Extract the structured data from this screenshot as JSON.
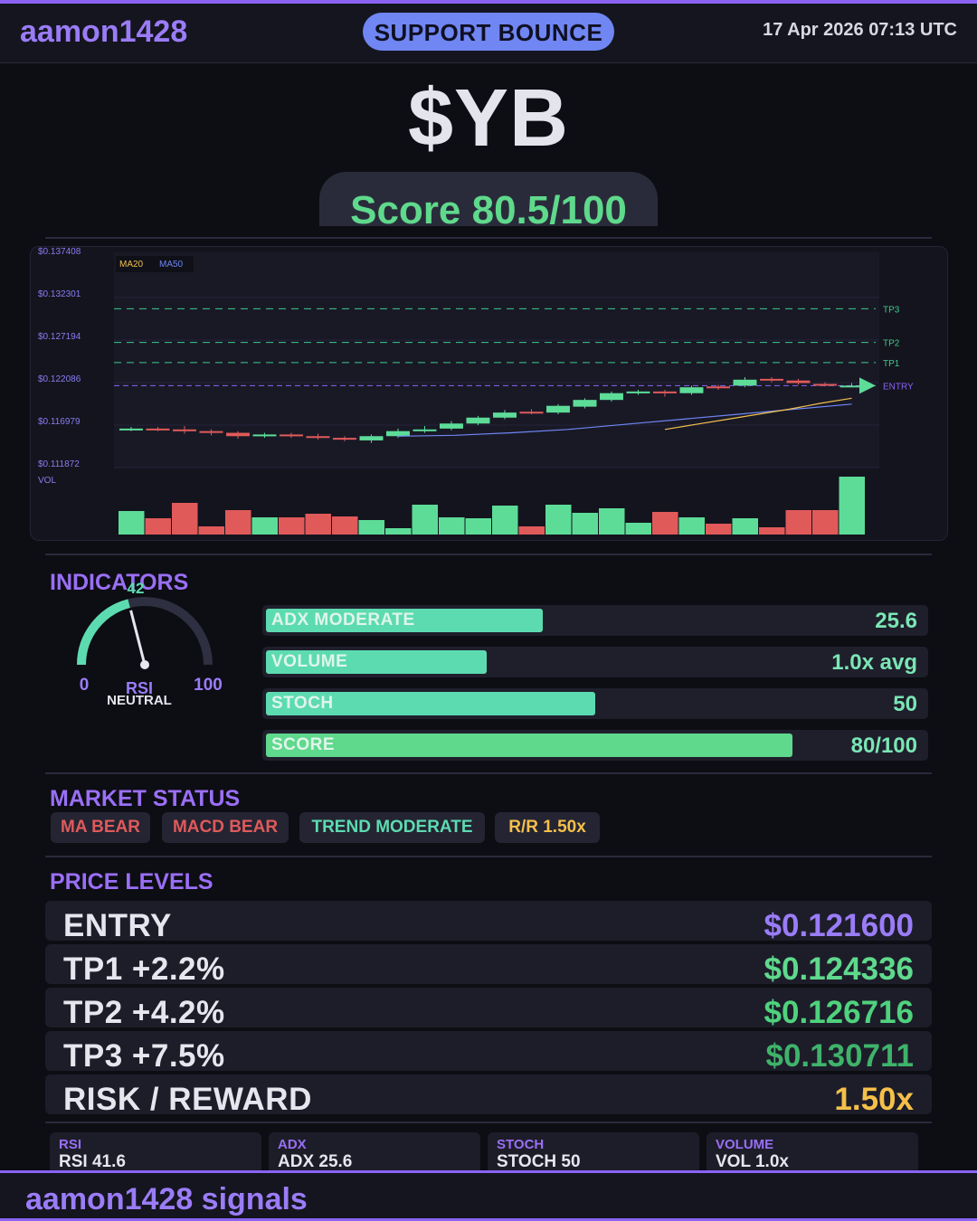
{
  "header": {
    "brand": "aamon1428",
    "signal": "SUPPORT BOUNCE",
    "datetime": "17 Apr 2026  07:13 UTC"
  },
  "ticker": "$YB",
  "score_label": "Score 80.5/100",
  "chart": {
    "y_labels": [
      "$0.137408",
      "$0.132301",
      "$0.127194",
      "$0.122086",
      "$0.116979",
      "$0.111872"
    ],
    "vol_label": "VOL",
    "legend": [
      "MA20",
      "MA50"
    ],
    "level_labels": [
      "TP3",
      "TP2",
      "TP1",
      "ENTRY"
    ],
    "colors": {
      "up": "#5ddc98",
      "down": "#e05a5a",
      "ma20": "#f2c14e",
      "ma50": "#6f86f3",
      "entry": "#8a63f5",
      "tp": "#3ec98a"
    }
  },
  "chart_data": {
    "type": "candlestick",
    "ylim": [
      0.111872,
      0.137408
    ],
    "levels": {
      "TP3": 0.130711,
      "TP2": 0.126716,
      "TP1": 0.124336,
      "ENTRY": 0.1216
    },
    "candles": [
      {
        "o": 0.1164,
        "c": 0.1165,
        "h": 0.1167,
        "l": 0.1162,
        "v": 26
      },
      {
        "o": 0.1165,
        "c": 0.1164,
        "h": 0.1167,
        "l": 0.1162,
        "v": 18
      },
      {
        "o": 0.1164,
        "c": 0.1162,
        "h": 0.1168,
        "l": 0.1159,
        "v": 35
      },
      {
        "o": 0.1162,
        "c": 0.116,
        "h": 0.1164,
        "l": 0.1157,
        "v": 9
      },
      {
        "o": 0.116,
        "c": 0.1156,
        "h": 0.1162,
        "l": 0.1153,
        "v": 27
      },
      {
        "o": 0.1156,
        "c": 0.1158,
        "h": 0.116,
        "l": 0.1154,
        "v": 19
      },
      {
        "o": 0.1158,
        "c": 0.1156,
        "h": 0.116,
        "l": 0.1154,
        "v": 19
      },
      {
        "o": 0.1156,
        "c": 0.1154,
        "h": 0.1159,
        "l": 0.1152,
        "v": 23
      },
      {
        "o": 0.1154,
        "c": 0.1152,
        "h": 0.1156,
        "l": 0.115,
        "v": 20
      },
      {
        "o": 0.1151,
        "c": 0.1156,
        "h": 0.1158,
        "l": 0.1148,
        "v": 16
      },
      {
        "o": 0.1156,
        "c": 0.1162,
        "h": 0.1165,
        "l": 0.1154,
        "v": 7
      },
      {
        "o": 0.1162,
        "c": 0.1164,
        "h": 0.1168,
        "l": 0.116,
        "v": 33
      },
      {
        "o": 0.1165,
        "c": 0.1171,
        "h": 0.1174,
        "l": 0.1163,
        "v": 19
      },
      {
        "o": 0.1171,
        "c": 0.1178,
        "h": 0.118,
        "l": 0.1169,
        "v": 18
      },
      {
        "o": 0.1178,
        "c": 0.1184,
        "h": 0.1187,
        "l": 0.1176,
        "v": 32
      },
      {
        "o": 0.1185,
        "c": 0.1184,
        "h": 0.1188,
        "l": 0.1182,
        "v": 9
      },
      {
        "o": 0.1184,
        "c": 0.1192,
        "h": 0.1194,
        "l": 0.1182,
        "v": 33
      },
      {
        "o": 0.1191,
        "c": 0.1199,
        "h": 0.1201,
        "l": 0.1189,
        "v": 24
      },
      {
        "o": 0.1199,
        "c": 0.1207,
        "h": 0.1209,
        "l": 0.1197,
        "v": 29
      },
      {
        "o": 0.1207,
        "c": 0.1209,
        "h": 0.1211,
        "l": 0.1205,
        "v": 13
      },
      {
        "o": 0.1209,
        "c": 0.1207,
        "h": 0.1211,
        "l": 0.1203,
        "v": 25
      },
      {
        "o": 0.1207,
        "c": 0.1214,
        "h": 0.1216,
        "l": 0.1205,
        "v": 19
      },
      {
        "o": 0.1215,
        "c": 0.1214,
        "h": 0.1217,
        "l": 0.1211,
        "v": 12
      },
      {
        "o": 0.1216,
        "c": 0.1223,
        "h": 0.1226,
        "l": 0.1214,
        "v": 18
      },
      {
        "o": 0.1224,
        "c": 0.1222,
        "h": 0.1226,
        "l": 0.122,
        "v": 8
      },
      {
        "o": 0.1222,
        "c": 0.1219,
        "h": 0.1224,
        "l": 0.1217,
        "v": 27
      },
      {
        "o": 0.1218,
        "c": 0.1217,
        "h": 0.122,
        "l": 0.1215,
        "v": 27
      },
      {
        "o": 0.1216,
        "c": 0.1216,
        "h": 0.1219,
        "l": 0.1214,
        "v": 64
      }
    ],
    "ma20": [
      0.1164,
      0.117,
      0.1176,
      0.1182,
      0.1188,
      0.1195,
      0.1201
    ],
    "ma50": [
      0.1156,
      0.1157,
      0.116,
      0.1164,
      0.117,
      0.1176,
      0.1182,
      0.1188,
      0.1194
    ],
    "vol_max": 64
  },
  "indicators": {
    "title": "INDICATORS",
    "rsi": {
      "value": 42,
      "min_label": "0",
      "max_label": "100",
      "label": "RSI",
      "state": "NEUTRAL"
    },
    "bars": [
      {
        "label": "ADX  MODERATE",
        "value": "25.6",
        "pct": 0.42,
        "color": "#5ddbb0"
      },
      {
        "label": "VOLUME",
        "value": "1.0x avg",
        "pct": 0.335,
        "color": "#5ddbb0"
      },
      {
        "label": "STOCH",
        "value": "50",
        "pct": 0.5,
        "color": "#5ddbb0"
      },
      {
        "label": "SCORE",
        "value": "80/100",
        "pct": 0.8,
        "color": "#5fd98c"
      }
    ]
  },
  "market_status": {
    "title": "MARKET STATUS",
    "chips": [
      {
        "label": "MA BEAR",
        "color": "#e05a5a"
      },
      {
        "label": "MACD BEAR",
        "color": "#e05a5a"
      },
      {
        "label": "TREND MODERATE",
        "color": "#5ddbb0"
      },
      {
        "label": "R/R  1.50x",
        "color": "#f5c04a"
      }
    ]
  },
  "price_levels": {
    "title": "PRICE LEVELS",
    "rows": [
      {
        "label": "ENTRY",
        "price": "$0.121600",
        "color": "#9a7cf7"
      },
      {
        "label": "TP1  +2.2%",
        "price": "$0.124336",
        "color": "#5fd98c"
      },
      {
        "label": "TP2  +4.2%",
        "price": "$0.126716",
        "color": "#4fd27d"
      },
      {
        "label": "TP3  +7.5%",
        "price": "$0.130711",
        "color": "#3fb36a"
      },
      {
        "label": "RISK / REWARD",
        "price": "1.50x",
        "color": "#f5c04a"
      }
    ]
  },
  "stats": [
    {
      "title": "RSI",
      "value": "RSI 41.6"
    },
    {
      "title": "ADX",
      "value": "ADX 25.6"
    },
    {
      "title": "STOCH",
      "value": "STOCH 50"
    },
    {
      "title": "VOLUME",
      "value": "VOL 1.0x"
    }
  ],
  "footer": "aamon1428 signals"
}
